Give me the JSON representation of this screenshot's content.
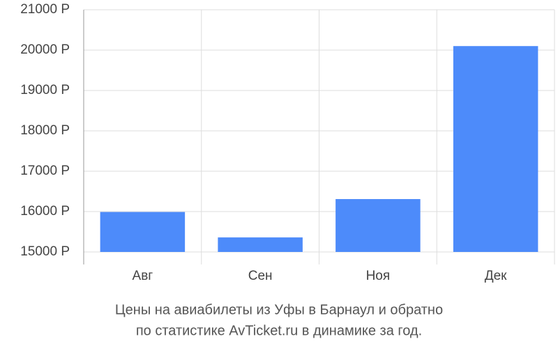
{
  "chart_data": {
    "type": "bar",
    "title": [
      "Цены на авиабилеты из Уфы в Барнаул и обратно",
      "по статистике AvTicket.ru в динамике за год."
    ],
    "categories": [
      "Авг",
      "Сен",
      "Ноя",
      "Дек"
    ],
    "values": [
      15990,
      15360,
      16310,
      20100
    ],
    "color": "#4d8bfa",
    "ylim": [
      15000,
      21000
    ],
    "yticks": [
      {
        "value": 15000,
        "label": "15000 Р"
      },
      {
        "value": 16000,
        "label": "16000 Р"
      },
      {
        "value": 17000,
        "label": "17000 Р"
      },
      {
        "value": 18000,
        "label": "18000 Р"
      },
      {
        "value": 19000,
        "label": "19000 Р"
      },
      {
        "value": 20000,
        "label": "20000 Р"
      },
      {
        "value": 21000,
        "label": "21000 Р"
      }
    ],
    "grid": true
  }
}
